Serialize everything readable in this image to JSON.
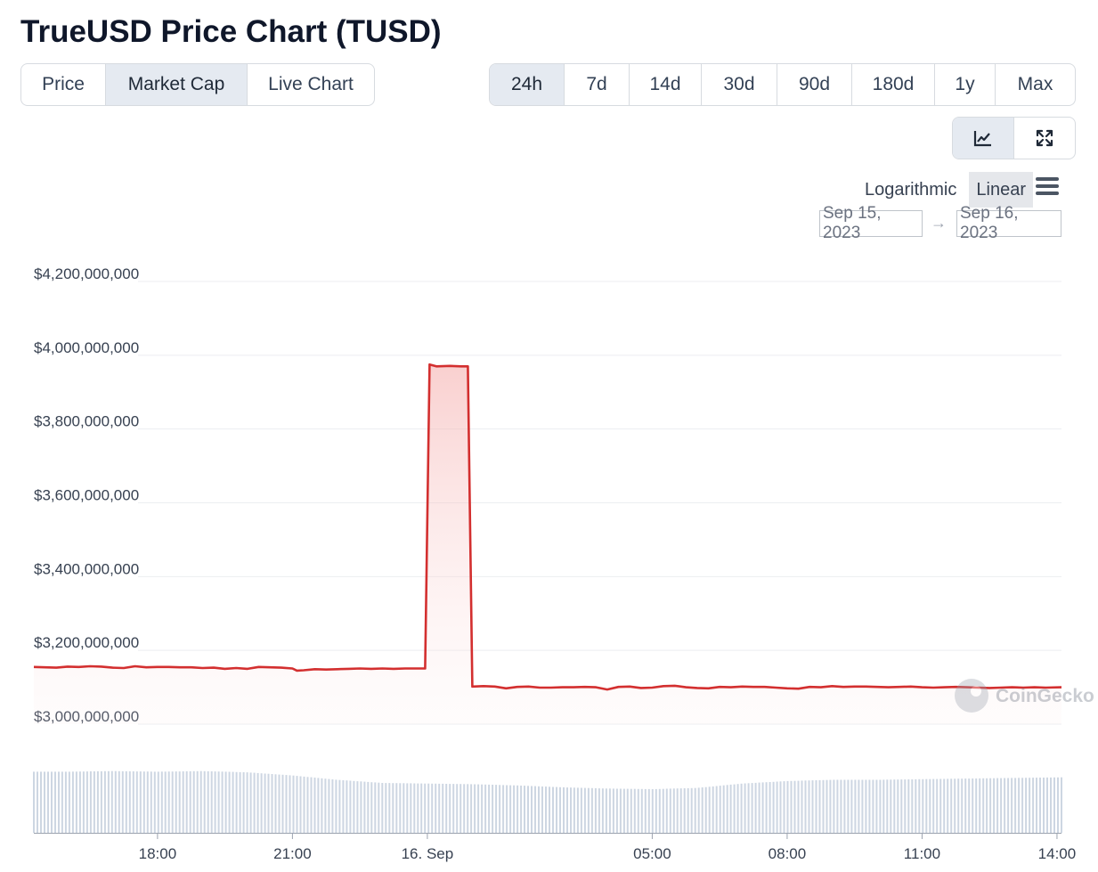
{
  "title": "TrueUSD Price Chart (TUSD)",
  "data_tabs": [
    "Price",
    "Market Cap",
    "Live Chart"
  ],
  "data_tab_active": 1,
  "range_tabs": [
    "24h",
    "7d",
    "14d",
    "30d",
    "90d",
    "180d",
    "1y",
    "Max"
  ],
  "range_tab_active": 0,
  "view_buttons": [
    {
      "icon": "line-chart-icon"
    },
    {
      "icon": "expand-icon"
    }
  ],
  "scale_options": [
    "Logarithmic",
    "Linear"
  ],
  "scale_active": 1,
  "date_from": "Sep 15, 2023",
  "date_arrow": "→",
  "date_to": "Sep 16, 2023",
  "watermark": "CoinGecko",
  "colors": {
    "line": "#d32f2f",
    "volume": "#cdd6e2",
    "active_tab": "#e5eaf1"
  },
  "chart_data": {
    "type": "area",
    "ylim": [
      3000000000,
      4200000000
    ],
    "y_ticks": [
      {
        "value": 4200000000,
        "label": "$4,200,000,000"
      },
      {
        "value": 4000000000,
        "label": "$4,000,000,000"
      },
      {
        "value": 3800000000,
        "label": "$3,800,000,000"
      },
      {
        "value": 3600000000,
        "label": "$3,600,000,000"
      },
      {
        "value": 3400000000,
        "label": "$3,400,000,000"
      },
      {
        "value": 3200000000,
        "label": "$3,200,000,000"
      },
      {
        "value": 3000000000,
        "label": "$3,000,000,000"
      }
    ],
    "x_range_hours": [
      15.25,
      38.1
    ],
    "x_ticks": [
      {
        "h": 18,
        "label": "18:00"
      },
      {
        "h": 21,
        "label": "21:00"
      },
      {
        "h": 24,
        "label": "16. Sep"
      },
      {
        "h": 29,
        "label": "05:00"
      },
      {
        "h": 32,
        "label": "08:00"
      },
      {
        "h": 35,
        "label": "11:00"
      },
      {
        "h": 38,
        "label": "14:00"
      }
    ],
    "series": [
      {
        "h": [
          15.25,
          15.5,
          15.75,
          16.0,
          16.25,
          16.5,
          16.75,
          17.0,
          17.25,
          17.5,
          17.75,
          18.0,
          18.25,
          18.5,
          18.75,
          19.0,
          19.25,
          19.5,
          19.75,
          20.0,
          20.25,
          20.5,
          20.75,
          21.0,
          21.1,
          21.25,
          21.5,
          21.75,
          22.0,
          22.25,
          22.5,
          22.75,
          23.0,
          23.25,
          23.5,
          23.95,
          24.05,
          24.2,
          24.5,
          24.75,
          24.9,
          25.0,
          25.25,
          25.5,
          25.75,
          26.0,
          26.25,
          26.5,
          26.75,
          27.0,
          27.25,
          27.5,
          27.75,
          28.0,
          28.25,
          28.5,
          28.75,
          29.0,
          29.25,
          29.5,
          29.75,
          30.0,
          30.25,
          30.5,
          30.75,
          31.0,
          31.25,
          31.5,
          31.75,
          32.0,
          32.25,
          32.5,
          32.75,
          33.0,
          33.25,
          33.5,
          33.75,
          34.0,
          34.25,
          34.5,
          34.75,
          35.0,
          35.25,
          35.5,
          35.75,
          36.0,
          36.25,
          36.5,
          36.75,
          37.0,
          37.25,
          37.5,
          37.75,
          38.1
        ],
        "values": [
          3155000000,
          3154000000,
          3153000000,
          3156000000,
          3155000000,
          3157000000,
          3156000000,
          3153000000,
          3152000000,
          3157000000,
          3154000000,
          3155000000,
          3155000000,
          3154000000,
          3154000000,
          3152000000,
          3153000000,
          3150000000,
          3152000000,
          3150000000,
          3155000000,
          3154000000,
          3153000000,
          3151000000,
          3145000000,
          3146000000,
          3149000000,
          3148000000,
          3149000000,
          3150000000,
          3151000000,
          3150000000,
          3151000000,
          3150000000,
          3151000000,
          3151000000,
          3975000000,
          3970000000,
          3971000000,
          3970000000,
          3970000000,
          3102000000,
          3103000000,
          3102000000,
          3097000000,
          3101000000,
          3102000000,
          3099000000,
          3099000000,
          3100000000,
          3100000000,
          3101000000,
          3100000000,
          3094000000,
          3101000000,
          3102000000,
          3098000000,
          3099000000,
          3103000000,
          3104000000,
          3100000000,
          3098000000,
          3097000000,
          3101000000,
          3100000000,
          3102000000,
          3101000000,
          3101000000,
          3099000000,
          3097000000,
          3096000000,
          3101000000,
          3100000000,
          3103000000,
          3101000000,
          3102000000,
          3102000000,
          3101000000,
          3100000000,
          3101000000,
          3102000000,
          3100000000,
          3099000000,
          3100000000,
          3101000000,
          3100000000,
          3099000000,
          3098000000,
          3099000000,
          3100000000,
          3099000000,
          3100000000,
          3099000000,
          3100000000,
          3101000000
        ]
      }
    ],
    "volume": {
      "h": [
        15.25,
        16.0,
        17.0,
        18.0,
        19.0,
        20.0,
        21.0,
        22.0,
        23.0,
        24.0,
        25.0,
        26.0,
        27.0,
        28.0,
        29.0,
        30.0,
        31.0,
        32.0,
        33.0,
        34.0,
        35.0,
        36.0,
        37.0,
        38.1
      ],
      "relative": [
        0.98,
        0.98,
        0.99,
        0.98,
        0.99,
        0.97,
        0.92,
        0.85,
        0.8,
        0.79,
        0.78,
        0.76,
        0.73,
        0.71,
        0.7,
        0.72,
        0.79,
        0.83,
        0.85,
        0.85,
        0.86,
        0.87,
        0.88,
        0.89
      ]
    }
  }
}
